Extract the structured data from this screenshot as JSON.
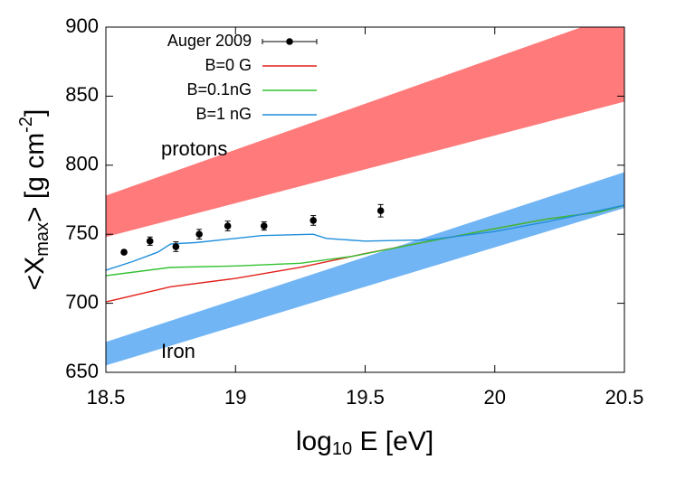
{
  "chart_data": {
    "type": "line",
    "x_label": [
      "log",
      "10",
      " E [eV]"
    ],
    "y_label": [
      "<X",
      "max",
      "> [g cm",
      "-2",
      "]"
    ],
    "xlim": [
      18.5,
      20.5
    ],
    "ylim": [
      650,
      900
    ],
    "xticks": [
      18.5,
      19,
      19.5,
      20,
      20.5
    ],
    "yticks": [
      650,
      700,
      750,
      800,
      850,
      900
    ],
    "grid": false,
    "bands": [
      {
        "label": "protons",
        "color": "#ff7b7b",
        "x": [
          18.5,
          20.5
        ],
        "low": [
          748,
          846
        ],
        "high": [
          778,
          911
        ]
      },
      {
        "label": "Iron",
        "color": "#72b5f4",
        "x": [
          18.5,
          20.5
        ],
        "low": [
          655,
          769
        ],
        "high": [
          672,
          795
        ]
      }
    ],
    "points": {
      "name": "Auger 2009",
      "color": "#000000",
      "x": [
        18.57,
        18.67,
        18.77,
        18.86,
        18.97,
        19.11,
        19.3,
        19.56
      ],
      "values": [
        737,
        745,
        741,
        750,
        756,
        756,
        760,
        767
      ],
      "errors": [
        1.5,
        3,
        3.5,
        3.5,
        3.5,
        3,
        3.5,
        4.5
      ]
    },
    "series": [
      {
        "name": "B=0 G",
        "color": "#e3211c",
        "x": [
          18.5,
          18.75,
          19,
          19.25,
          19.5,
          19.75,
          20,
          20.2,
          20.4,
          20.5
        ],
        "values": [
          701,
          712,
          718,
          726,
          736,
          745,
          754,
          761,
          766,
          771
        ]
      },
      {
        "name": "B=0.1nG",
        "color": "#33c233",
        "x": [
          18.5,
          18.75,
          19,
          19.25,
          19.45,
          19.75,
          20,
          20.2,
          20.4,
          20.5
        ],
        "values": [
          720,
          726,
          727,
          729,
          734,
          745,
          754,
          761,
          766,
          771
        ]
      },
      {
        "name": "B=1 nG",
        "color": "#1f8fdb",
        "x": [
          18.5,
          18.6,
          18.7,
          18.75,
          18.85,
          19,
          19.1,
          19.3,
          19.35,
          19.5,
          19.75,
          20,
          20.2,
          20.5
        ],
        "values": [
          724,
          730,
          737,
          743,
          744,
          747,
          749,
          750,
          747,
          745,
          746,
          752,
          759,
          771
        ]
      }
    ]
  }
}
